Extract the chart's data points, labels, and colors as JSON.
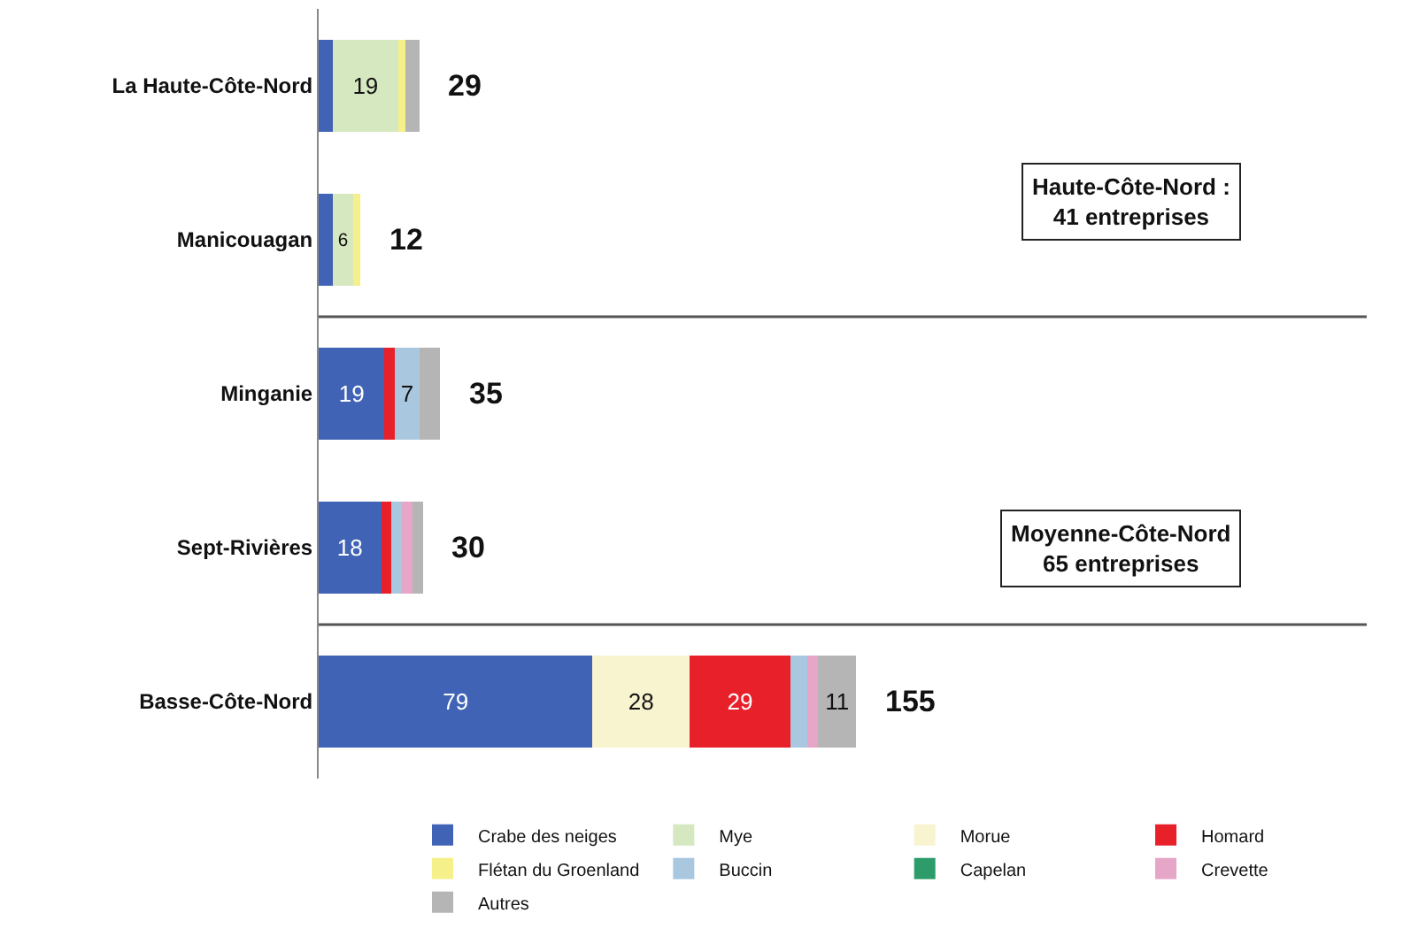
{
  "chart_data": {
    "type": "bar",
    "orientation": "horizontal",
    "stacked": true,
    "categories": [
      "La Haute-Côte-Nord",
      "Manicouagan",
      "Minganie",
      "Sept-Rivières",
      "Basse-Côte-Nord"
    ],
    "series": [
      {
        "name": "Crabe des neiges",
        "color": "#4163b5",
        "values": [
          4,
          4,
          19,
          18,
          79
        ],
        "value_labels": [
          null,
          null,
          "19",
          "18",
          "79"
        ]
      },
      {
        "name": "Mye",
        "color": "#d5e8c0",
        "values": [
          19,
          6,
          0,
          0,
          0
        ],
        "value_labels": [
          "19",
          "6",
          null,
          null,
          null
        ]
      },
      {
        "name": "Morue",
        "color": "#f8f4d0",
        "values": [
          0,
          0,
          0,
          0,
          28
        ],
        "value_labels": [
          null,
          null,
          null,
          null,
          "28"
        ]
      },
      {
        "name": "Homard",
        "color": "#e8202a",
        "values": [
          0,
          0,
          3,
          3,
          29
        ],
        "value_labels": [
          null,
          null,
          null,
          null,
          "29"
        ]
      },
      {
        "name": "Flétan du Groenland",
        "color": "#f5f08a",
        "values": [
          2,
          2,
          0,
          0,
          0
        ]
      },
      {
        "name": "Buccin",
        "color": "#a9c8e0",
        "values": [
          0,
          0,
          7,
          3,
          5
        ],
        "value_labels": [
          null,
          null,
          "7",
          null,
          null
        ]
      },
      {
        "name": "Capelan",
        "color": "#2e9c6a",
        "values": [
          0,
          0,
          0,
          0,
          0
        ]
      },
      {
        "name": "Crevette",
        "color": "#e6a6c8",
        "values": [
          0,
          0,
          0,
          3,
          3
        ]
      },
      {
        "name": "Autres",
        "color": "#b5b5b5",
        "values": [
          4,
          0,
          6,
          3,
          11
        ],
        "value_labels": [
          null,
          null,
          null,
          null,
          "11"
        ]
      }
    ],
    "totals": [
      "29",
      "12",
      "35",
      "30",
      "155"
    ],
    "annotations": [
      "Haute-Côte-Nord :\n41 entreprises",
      "Moyenne-Côte-Nord\n65 entreprises"
    ],
    "legend": "bottom"
  }
}
